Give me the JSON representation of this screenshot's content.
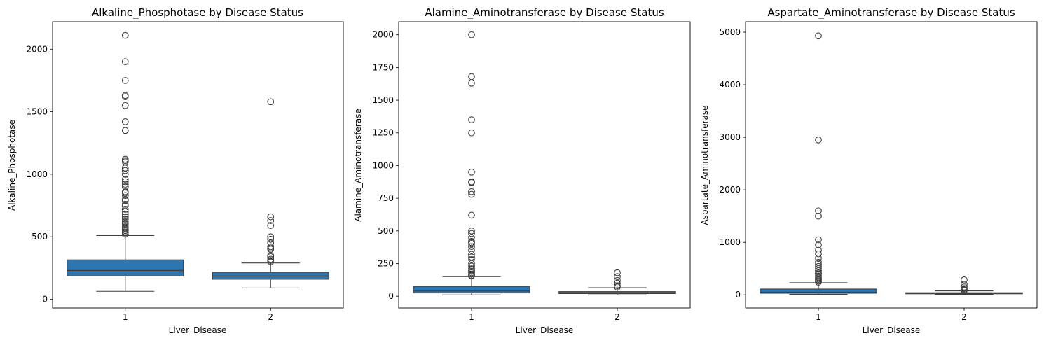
{
  "chart_data": [
    {
      "type": "box",
      "title": "Alkaline_Phosphotase by Disease Status",
      "xlabel": "Liver_Disease",
      "ylabel": "Alkaline_Phosphotase",
      "categories": [
        "1",
        "2"
      ],
      "ylim": [
        -70,
        2220
      ],
      "yticks": [
        0,
        500,
        1000,
        1500,
        2000
      ],
      "box_color": "#2d76b0",
      "boxes": [
        {
          "category": "1",
          "whisker_low": 63,
          "q1": 185,
          "median": 230,
          "q3": 315,
          "whisker_high": 510,
          "outliers": [
            520,
            530,
            540,
            550,
            560,
            570,
            580,
            600,
            610,
            620,
            640,
            660,
            680,
            700,
            720,
            750,
            760,
            790,
            800,
            830,
            850,
            860,
            900,
            920,
            940,
            960,
            1000,
            1030,
            1050,
            1100,
            1110,
            1120,
            1350,
            1420,
            1550,
            1620,
            1630,
            1750,
            1900,
            2110
          ]
        },
        {
          "category": "2",
          "whisker_low": 90,
          "q1": 160,
          "median": 185,
          "q3": 215,
          "whisker_high": 290,
          "outliers": [
            300,
            310,
            320,
            340,
            350,
            400,
            410,
            420,
            450,
            480,
            500,
            590,
            630,
            660,
            1580
          ]
        }
      ]
    },
    {
      "type": "box",
      "title": "Alamine_Aminotransferase by Disease Status",
      "xlabel": "Liver_Disease",
      "ylabel": "Alamine_Aminotransferase",
      "categories": [
        "1",
        "2"
      ],
      "ylim": [
        -90,
        2100
      ],
      "yticks": [
        0,
        250,
        500,
        750,
        1000,
        1250,
        1500,
        1750,
        2000
      ],
      "box_color": "#2d76b0",
      "boxes": [
        {
          "category": "1",
          "whisker_low": 10,
          "q1": 25,
          "median": 40,
          "q3": 75,
          "whisker_high": 150,
          "outliers": [
            155,
            160,
            170,
            180,
            190,
            200,
            210,
            230,
            250,
            280,
            300,
            320,
            350,
            380,
            400,
            410,
            420,
            450,
            480,
            500,
            620,
            780,
            800,
            870,
            875,
            950,
            1250,
            1350,
            1630,
            1680,
            2000
          ]
        },
        {
          "category": "2",
          "whisker_low": 10,
          "q1": 20,
          "median": 25,
          "q3": 35,
          "whisker_high": 65,
          "outliers": [
            70,
            80,
            100,
            120,
            150,
            180
          ]
        }
      ]
    },
    {
      "type": "box",
      "title": "Aspartate_Aminotransferase by Disease Status",
      "xlabel": "Liver_Disease",
      "ylabel": "Aspartate_Aminotransferase",
      "categories": [
        "1",
        "2"
      ],
      "ylim": [
        -250,
        5200
      ],
      "yticks": [
        0,
        1000,
        2000,
        3000,
        4000,
        5000
      ],
      "box_color": "#2d76b0",
      "boxes": [
        {
          "category": "1",
          "whisker_low": 10,
          "q1": 30,
          "median": 50,
          "q3": 110,
          "whisker_high": 230,
          "outliers": [
            240,
            260,
            280,
            300,
            330,
            360,
            400,
            420,
            460,
            500,
            540,
            580,
            620,
            700,
            780,
            850,
            950,
            1050,
            1500,
            1600,
            2950,
            4930
          ]
        },
        {
          "category": "2",
          "whisker_low": 10,
          "q1": 20,
          "median": 28,
          "q3": 40,
          "whisker_high": 75,
          "outliers": [
            80,
            100,
            120,
            150,
            200,
            285
          ]
        }
      ]
    }
  ]
}
